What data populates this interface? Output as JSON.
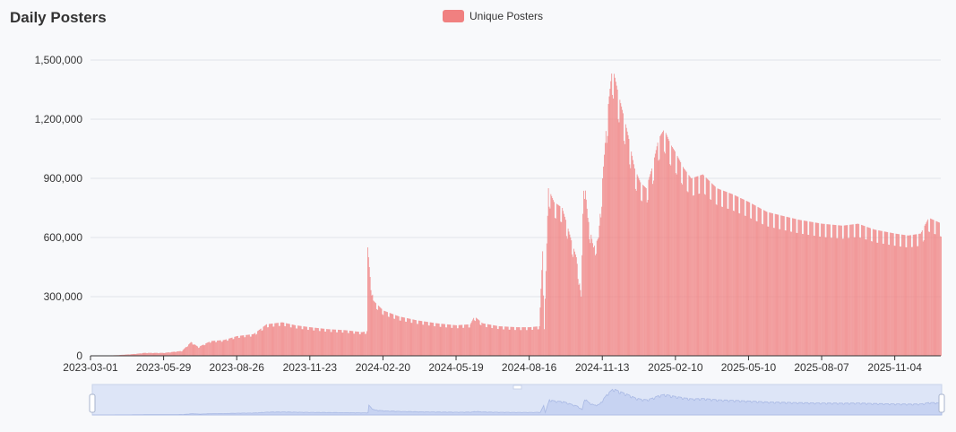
{
  "title": "Daily Posters",
  "legend": {
    "label": "Unique Posters",
    "color": "#f08080"
  },
  "chart_data": {
    "type": "bar",
    "title": "Daily Posters",
    "xlabel": "",
    "ylabel": "",
    "ylim": [
      0,
      1500000
    ],
    "grid": true,
    "legend_position": "top-center",
    "y_ticks": [
      "0",
      "300,000",
      "600,000",
      "900,000",
      "1,200,000",
      "1,500,000"
    ],
    "x_ticks": [
      "2023-03-01",
      "2023-05-29",
      "2023-08-26",
      "2023-11-23",
      "2024-02-20",
      "2024-05-19",
      "2024-08-16",
      "2024-11-13",
      "2025-02-10",
      "2025-05-10",
      "2025-08-07",
      "2025-11-04"
    ],
    "series": [
      {
        "name": "Unique Posters",
        "color": "#f08080",
        "points": [
          [
            "2023-03-01",
            0
          ],
          [
            "2023-04-01",
            3000
          ],
          [
            "2023-04-25",
            10000
          ],
          [
            "2023-05-05",
            15000
          ],
          [
            "2023-05-29",
            15000
          ],
          [
            "2023-06-20",
            25000
          ],
          [
            "2023-07-01",
            70000
          ],
          [
            "2023-07-10",
            45000
          ],
          [
            "2023-07-25",
            75000
          ],
          [
            "2023-08-10",
            80000
          ],
          [
            "2023-08-26",
            100000
          ],
          [
            "2023-09-15",
            110000
          ],
          [
            "2023-10-01",
            160000
          ],
          [
            "2023-10-20",
            170000
          ],
          [
            "2023-11-05",
            155000
          ],
          [
            "2023-11-23",
            145000
          ],
          [
            "2023-12-15",
            135000
          ],
          [
            "2024-01-05",
            130000
          ],
          [
            "2024-01-25",
            120000
          ],
          [
            "2024-01-31",
            125000
          ],
          [
            "2024-02-01",
            550000
          ],
          [
            "2024-02-04",
            400000
          ],
          [
            "2024-02-08",
            280000
          ],
          [
            "2024-02-20",
            230000
          ],
          [
            "2024-03-10",
            200000
          ],
          [
            "2024-04-01",
            180000
          ],
          [
            "2024-04-25",
            165000
          ],
          [
            "2024-05-19",
            155000
          ],
          [
            "2024-06-05",
            160000
          ],
          [
            "2024-06-10",
            200000
          ],
          [
            "2024-06-20",
            165000
          ],
          [
            "2024-07-10",
            150000
          ],
          [
            "2024-08-01",
            145000
          ],
          [
            "2024-08-16",
            145000
          ],
          [
            "2024-08-28",
            150000
          ],
          [
            "2024-09-01",
            530000
          ],
          [
            "2024-09-03",
            150000
          ],
          [
            "2024-09-08",
            850000
          ],
          [
            "2024-09-15",
            780000
          ],
          [
            "2024-09-25",
            750000
          ],
          [
            "2024-10-05",
            600000
          ],
          [
            "2024-10-12",
            500000
          ],
          [
            "2024-10-18",
            300000
          ],
          [
            "2024-10-21",
            930000
          ],
          [
            "2024-10-26",
            700000
          ],
          [
            "2024-11-02",
            550000
          ],
          [
            "2024-11-08",
            600000
          ],
          [
            "2024-11-13",
            900000
          ],
          [
            "2024-11-18",
            1200000
          ],
          [
            "2024-11-25",
            1470000
          ],
          [
            "2024-12-01",
            1350000
          ],
          [
            "2024-12-08",
            1230000
          ],
          [
            "2024-12-15",
            1100000
          ],
          [
            "2024-12-22",
            950000
          ],
          [
            "2024-12-29",
            880000
          ],
          [
            "2025-01-05",
            850000
          ],
          [
            "2025-01-12",
            950000
          ],
          [
            "2025-01-20",
            1100000
          ],
          [
            "2025-01-27",
            1150000
          ],
          [
            "2025-02-03",
            1080000
          ],
          [
            "2025-02-10",
            1030000
          ],
          [
            "2025-02-20",
            950000
          ],
          [
            "2025-03-01",
            900000
          ],
          [
            "2025-03-15",
            920000
          ],
          [
            "2025-04-01",
            850000
          ],
          [
            "2025-04-20",
            820000
          ],
          [
            "2025-05-10",
            780000
          ],
          [
            "2025-06-01",
            730000
          ],
          [
            "2025-06-20",
            710000
          ],
          [
            "2025-07-10",
            690000
          ],
          [
            "2025-08-07",
            670000
          ],
          [
            "2025-09-01",
            660000
          ],
          [
            "2025-09-20",
            670000
          ],
          [
            "2025-10-10",
            640000
          ],
          [
            "2025-11-04",
            620000
          ],
          [
            "2025-11-20",
            610000
          ],
          [
            "2025-12-05",
            620000
          ],
          [
            "2025-12-15",
            700000
          ],
          [
            "2025-12-31",
            670000
          ]
        ]
      }
    ]
  }
}
